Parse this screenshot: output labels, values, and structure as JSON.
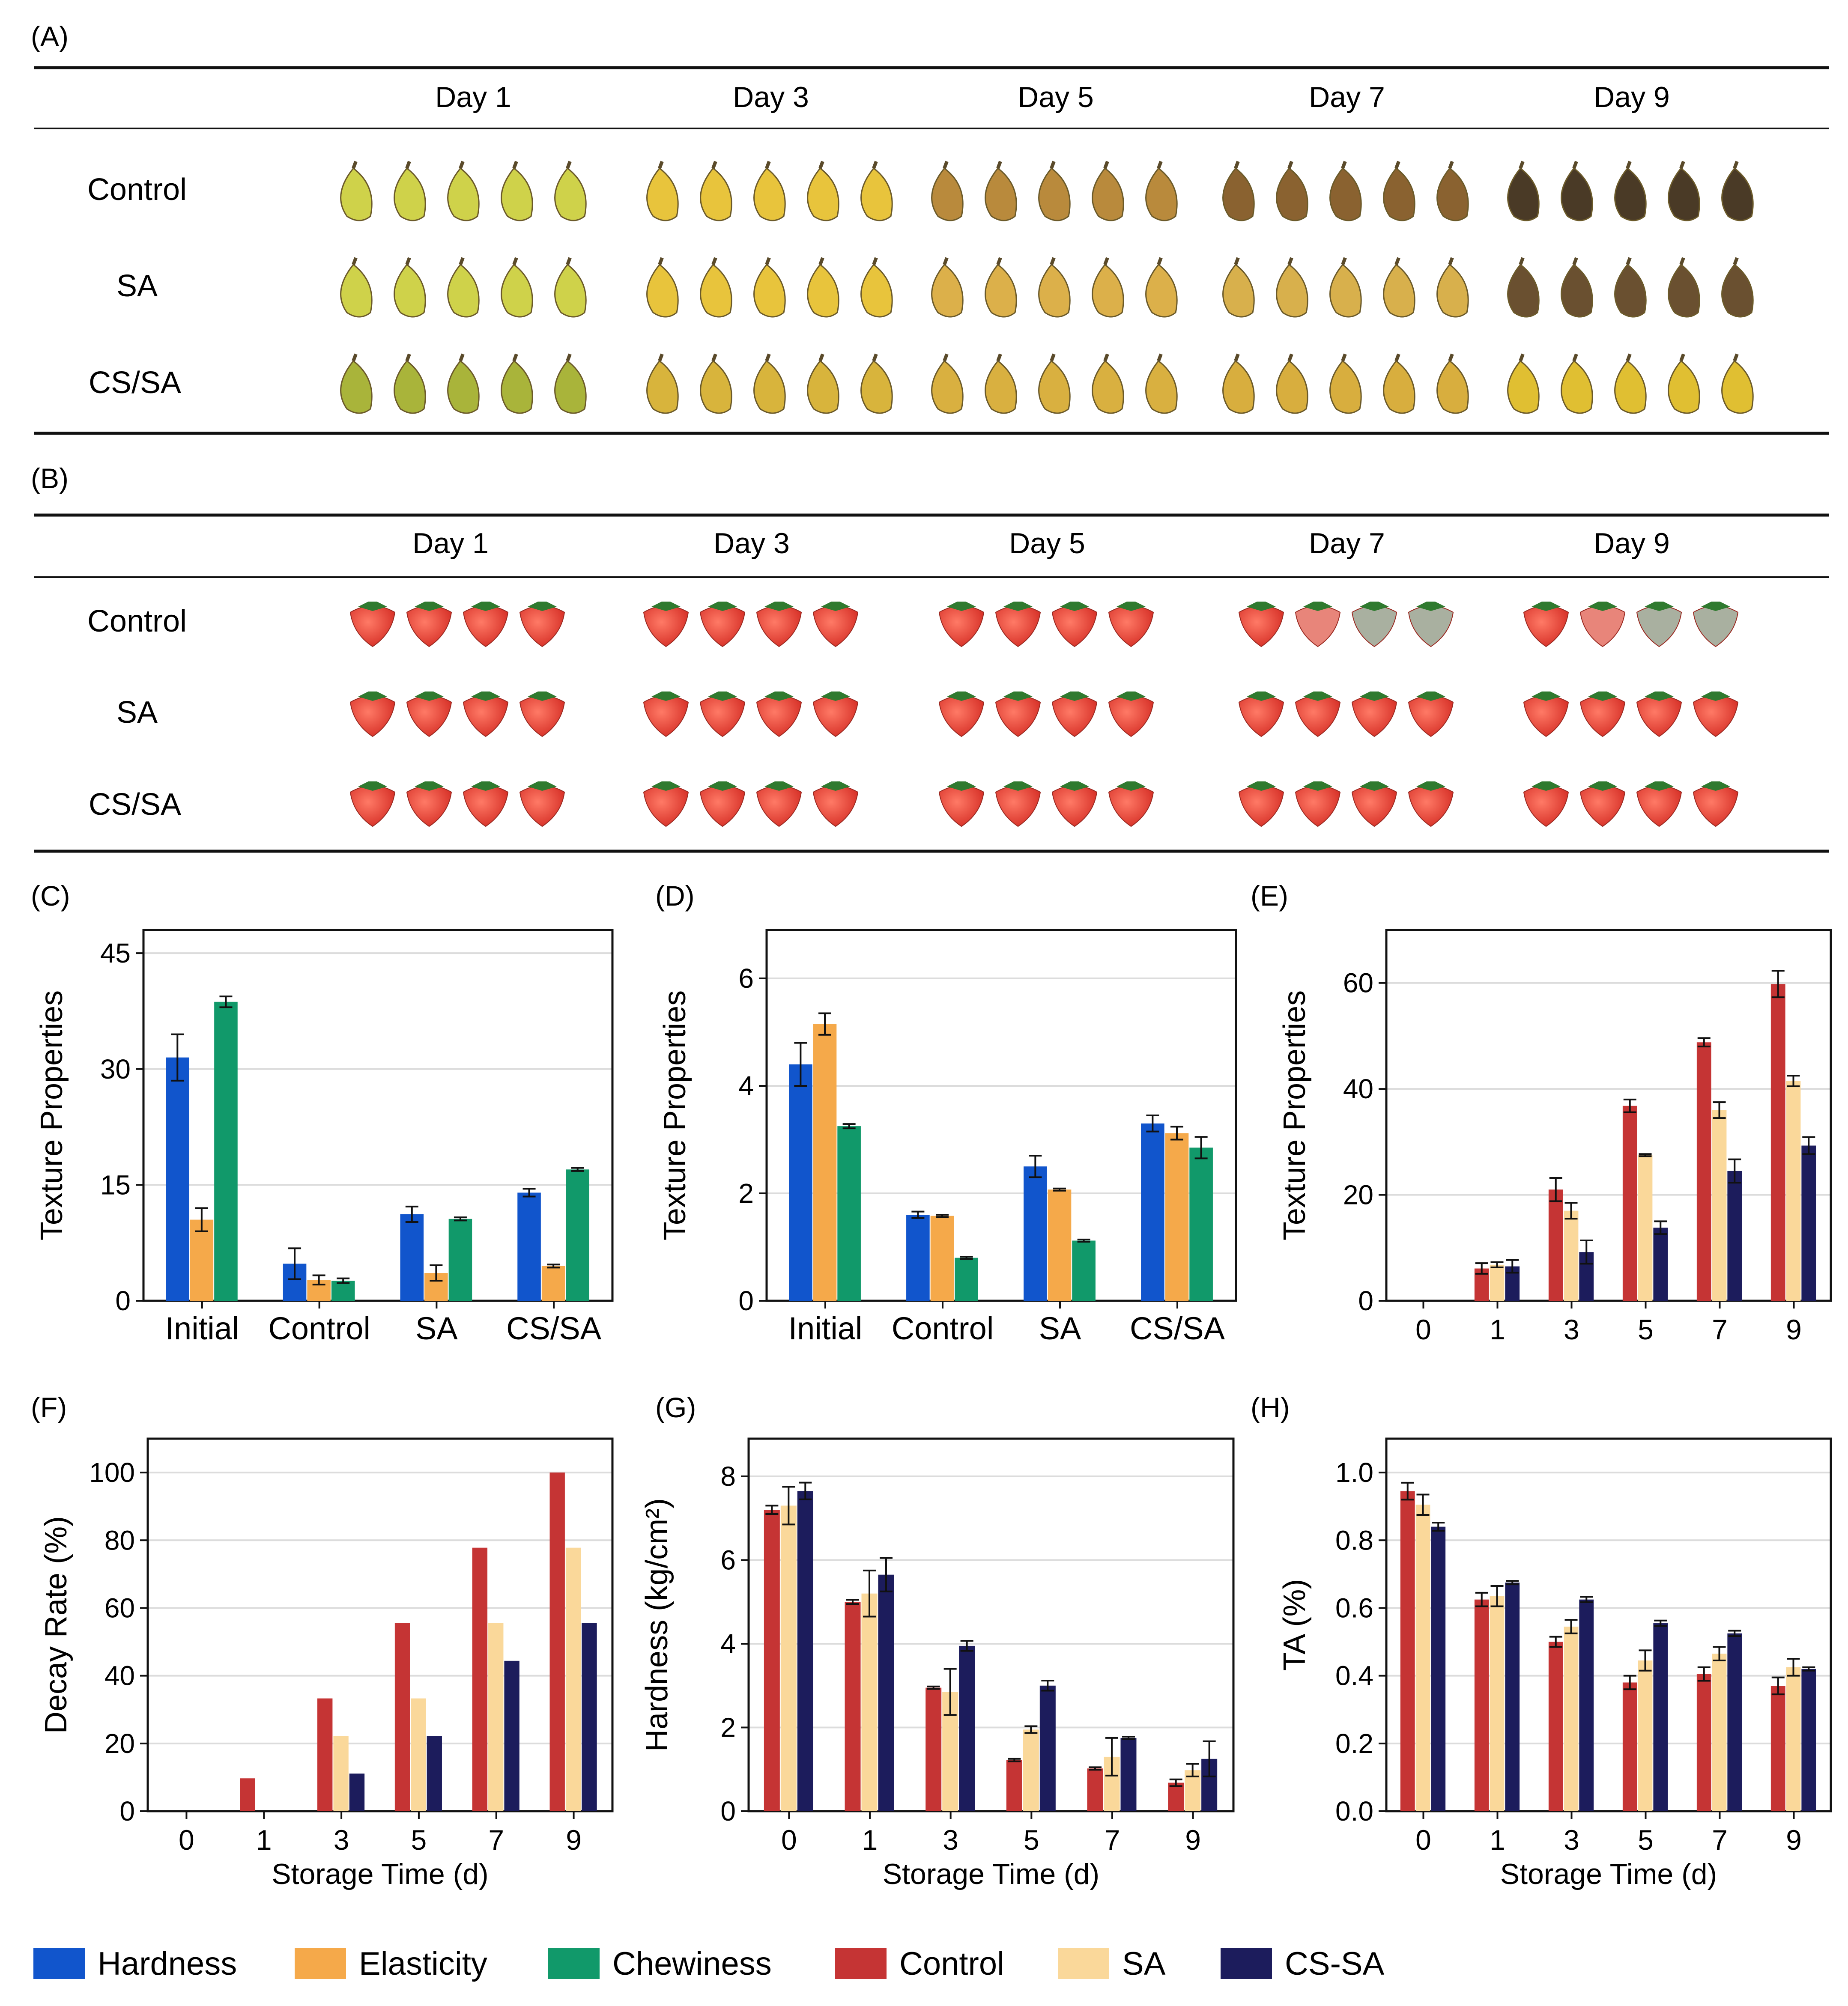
{
  "panels": {
    "A": {
      "label": "(A)",
      "days": [
        "Day 1",
        "Day 3",
        "Day 5",
        "Day 7",
        "Day 9"
      ],
      "rows": [
        "Control",
        "SA",
        "CS/SA"
      ]
    },
    "B": {
      "label": "(B)",
      "days": [
        "Day 1",
        "Day 3",
        "Day 5",
        "Day 7",
        "Day 9"
      ],
      "rows": [
        "Control",
        "SA",
        "CS/SA"
      ]
    }
  },
  "colors": {
    "Hardness": "#1155cc",
    "Elasticity": "#f5a94a",
    "Chewiness": "#11996a",
    "Control": "#c53434",
    "SA": "#fad89a",
    "CS-SA": "#1c1c5c",
    "banana_fresh": "#cfd24a",
    "banana_yellow": "#e8c43c",
    "banana_dark": "#4a3a26",
    "straw_red": "#e03a30",
    "straw_pale": "#e8857a",
    "straw_leaf": "#2f7a2f"
  },
  "legend": [
    {
      "name": "Hardness",
      "color": "#1155cc"
    },
    {
      "name": "Elasticity",
      "color": "#f5a94a"
    },
    {
      "name": "Chewiness",
      "color": "#11996a"
    },
    {
      "name": "Control",
      "color": "#c53434"
    },
    {
      "name": "SA",
      "color": "#fad89a"
    },
    {
      "name": "CS-SA",
      "color": "#1c1c5c"
    }
  ],
  "chart_data": [
    {
      "panel": "(C)",
      "type": "bar",
      "title": "",
      "xlabel": "",
      "ylabel": "Texture Properties",
      "ylim": [
        0,
        48
      ],
      "yticks": [
        0,
        15,
        30,
        45
      ],
      "grid": true,
      "categories": [
        "Initial",
        "Control",
        "SA",
        "CS/SA"
      ],
      "series": [
        {
          "name": "Hardness",
          "values": [
            31.5,
            4.8,
            11.2,
            14.0
          ],
          "errors": [
            3.0,
            2.0,
            1.0,
            0.5
          ]
        },
        {
          "name": "Elasticity",
          "values": [
            10.5,
            2.7,
            3.6,
            4.5
          ],
          "errors": [
            1.5,
            0.6,
            1.0,
            0.2
          ]
        },
        {
          "name": "Chewiness",
          "values": [
            38.7,
            2.6,
            10.6,
            17.0
          ],
          "errors": [
            0.7,
            0.3,
            0.2,
            0.2
          ]
        }
      ]
    },
    {
      "panel": "(D)",
      "type": "bar",
      "title": "",
      "xlabel": "",
      "ylabel": "Texture Properties",
      "ylim": [
        0,
        6.9
      ],
      "yticks": [
        0,
        2,
        4,
        6
      ],
      "grid": true,
      "categories": [
        "Initial",
        "Control",
        "SA",
        "CS/SA"
      ],
      "series": [
        {
          "name": "Hardness",
          "values": [
            4.4,
            1.6,
            2.5,
            3.3
          ],
          "errors": [
            0.4,
            0.06,
            0.2,
            0.15
          ]
        },
        {
          "name": "Elasticity",
          "values": [
            5.15,
            1.58,
            2.07,
            3.12
          ],
          "errors": [
            0.2,
            0.02,
            0.02,
            0.12
          ]
        },
        {
          "name": "Chewiness",
          "values": [
            3.25,
            0.8,
            1.12,
            2.85
          ],
          "errors": [
            0.04,
            0.02,
            0.02,
            0.2
          ]
        }
      ]
    },
    {
      "panel": "(E)",
      "type": "bar",
      "title": "",
      "xlabel": "",
      "ylabel": "Texture Properties",
      "ylim": [
        0,
        70
      ],
      "yticks": [
        0,
        20,
        40,
        60
      ],
      "grid": true,
      "categories": [
        "0",
        "1",
        "3",
        "5",
        "7",
        "9"
      ],
      "series": [
        {
          "name": "Control",
          "values": [
            0,
            6.1,
            21.0,
            36.8,
            48.8,
            59.8
          ],
          "errors": [
            0,
            1.0,
            2.2,
            1.2,
            0.8,
            2.5
          ]
        },
        {
          "name": "SA",
          "values": [
            0,
            6.8,
            17.0,
            27.5,
            36.0,
            41.5
          ],
          "errors": [
            0,
            0.5,
            1.5,
            0.2,
            1.5,
            1.0
          ]
        },
        {
          "name": "CS-SA",
          "values": [
            0,
            6.5,
            9.2,
            13.8,
            24.5,
            29.3
          ],
          "errors": [
            0,
            1.2,
            2.2,
            1.2,
            2.2,
            1.6
          ]
        }
      ]
    },
    {
      "panel": "(F)",
      "type": "bar",
      "title": "",
      "xlabel": "Storage Time (d)",
      "ylabel": "Decay Rate (%)",
      "ylim": [
        0,
        110
      ],
      "yticks": [
        0,
        20,
        40,
        60,
        80,
        100
      ],
      "grid": true,
      "categories": [
        "0",
        "1",
        "3",
        "5",
        "7",
        "9"
      ],
      "series": [
        {
          "name": "Control",
          "values": [
            0,
            9.7,
            33.3,
            55.6,
            77.8,
            100
          ]
        },
        {
          "name": "SA",
          "values": [
            0,
            0,
            22.2,
            33.3,
            55.6,
            77.8
          ]
        },
        {
          "name": "CS-SA",
          "values": [
            0,
            0,
            11.1,
            22.2,
            44.4,
            55.6
          ]
        }
      ]
    },
    {
      "panel": "(G)",
      "type": "bar",
      "title": "",
      "xlabel": "Storage Time (d)",
      "ylabel": "Hardness (kg/cm²)",
      "ylim": [
        0,
        8.9
      ],
      "yticks": [
        0,
        2,
        4,
        6,
        8
      ],
      "grid": true,
      "categories": [
        "0",
        "1",
        "3",
        "5",
        "7",
        "9"
      ],
      "series": [
        {
          "name": "Control",
          "values": [
            7.2,
            5.0,
            2.95,
            1.22,
            1.02,
            0.68
          ],
          "errors": [
            0.1,
            0.05,
            0.03,
            0.03,
            0.03,
            0.08
          ]
        },
        {
          "name": "SA",
          "values": [
            7.3,
            5.2,
            2.85,
            1.95,
            1.3,
            0.98
          ],
          "errors": [
            0.45,
            0.55,
            0.55,
            0.08,
            0.45,
            0.15
          ]
        },
        {
          "name": "CS-SA",
          "values": [
            7.65,
            5.65,
            3.95,
            3.0,
            1.75,
            1.25
          ],
          "errors": [
            0.2,
            0.4,
            0.12,
            0.12,
            0.03,
            0.42
          ]
        }
      ]
    },
    {
      "panel": "(H)",
      "type": "bar",
      "title": "",
      "xlabel": "Storage Time (d)",
      "ylabel": "TA (%)",
      "ylim": [
        0,
        1.1
      ],
      "yticks": [
        0.0,
        0.2,
        0.4,
        0.6,
        0.8,
        1.0
      ],
      "grid": true,
      "categories": [
        "0",
        "1",
        "3",
        "5",
        "7",
        "9"
      ],
      "series": [
        {
          "name": "Control",
          "values": [
            0.945,
            0.625,
            0.5,
            0.38,
            0.405,
            0.37
          ],
          "errors": [
            0.025,
            0.02,
            0.015,
            0.02,
            0.02,
            0.025
          ]
        },
        {
          "name": "SA",
          "values": [
            0.905,
            0.635,
            0.545,
            0.445,
            0.465,
            0.425
          ],
          "errors": [
            0.03,
            0.03,
            0.02,
            0.03,
            0.02,
            0.025
          ]
        },
        {
          "name": "CS-SA",
          "values": [
            0.84,
            0.675,
            0.625,
            0.555,
            0.525,
            0.42
          ],
          "errors": [
            0.012,
            0.005,
            0.008,
            0.008,
            0.008,
            0.005
          ]
        }
      ]
    }
  ]
}
